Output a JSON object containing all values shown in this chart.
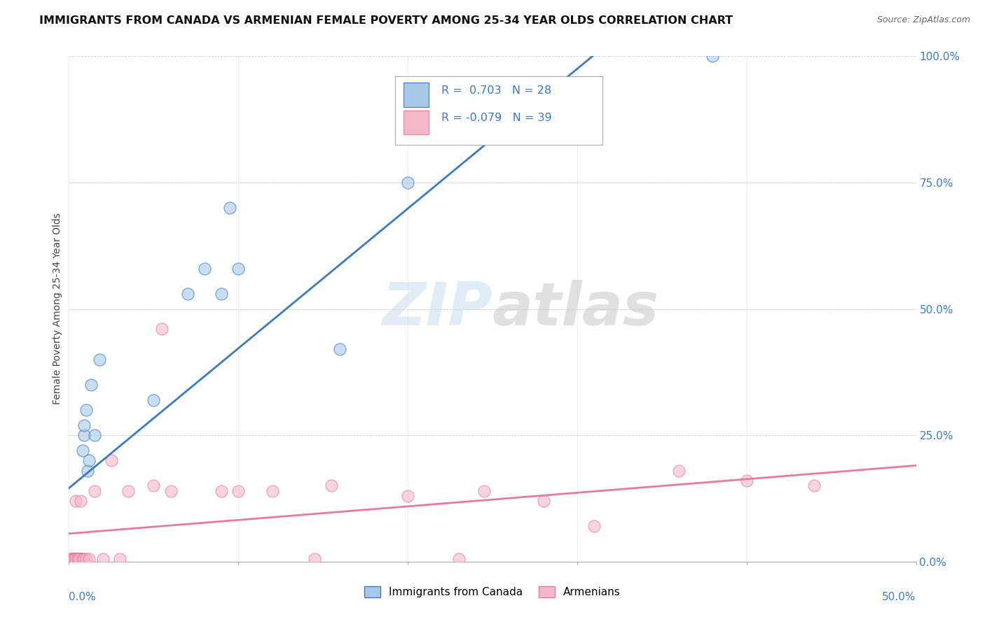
{
  "title": "IMMIGRANTS FROM CANADA VS ARMENIAN FEMALE POVERTY AMONG 25-34 YEAR OLDS CORRELATION CHART",
  "source": "Source: ZipAtlas.com",
  "ylabel": "Female Poverty Among 25-34 Year Olds",
  "legend_1_label": "Immigrants from Canada",
  "legend_2_label": "Armenians",
  "R1": 0.703,
  "N1": 28,
  "R2": -0.079,
  "N2": 39,
  "blue_color": "#a8c8e8",
  "pink_color": "#f4b8c8",
  "blue_line_color": "#3a7bbf",
  "pink_line_color": "#e87aa0",
  "watermark_color": "#d8e8f4",
  "blue_x": [
    0.002,
    0.003,
    0.003,
    0.004,
    0.004,
    0.005,
    0.005,
    0.006,
    0.007,
    0.008,
    0.008,
    0.009,
    0.009,
    0.01,
    0.011,
    0.012,
    0.013,
    0.015,
    0.018,
    0.05,
    0.07,
    0.08,
    0.09,
    0.095,
    0.1,
    0.16,
    0.2,
    0.38
  ],
  "blue_y": [
    0.005,
    0.005,
    0.005,
    0.005,
    0.005,
    0.005,
    0.005,
    0.005,
    0.005,
    0.005,
    0.22,
    0.25,
    0.27,
    0.3,
    0.18,
    0.2,
    0.35,
    0.25,
    0.4,
    0.32,
    0.53,
    0.58,
    0.53,
    0.7,
    0.58,
    0.42,
    0.75,
    1.0
  ],
  "pink_x": [
    0.001,
    0.001,
    0.002,
    0.002,
    0.002,
    0.003,
    0.003,
    0.003,
    0.004,
    0.004,
    0.005,
    0.005,
    0.006,
    0.007,
    0.008,
    0.009,
    0.01,
    0.012,
    0.015,
    0.02,
    0.025,
    0.03,
    0.035,
    0.05,
    0.055,
    0.06,
    0.09,
    0.1,
    0.12,
    0.145,
    0.155,
    0.2,
    0.23,
    0.245,
    0.28,
    0.31,
    0.36,
    0.4,
    0.44
  ],
  "pink_y": [
    0.005,
    0.005,
    0.005,
    0.005,
    0.005,
    0.005,
    0.005,
    0.005,
    0.005,
    0.12,
    0.005,
    0.005,
    0.005,
    0.12,
    0.005,
    0.005,
    0.005,
    0.005,
    0.14,
    0.005,
    0.2,
    0.005,
    0.14,
    0.15,
    0.46,
    0.14,
    0.14,
    0.14,
    0.14,
    0.005,
    0.15,
    0.13,
    0.005,
    0.14,
    0.12,
    0.07,
    0.18,
    0.16,
    0.15
  ],
  "xlim": [
    0,
    0.5
  ],
  "ylim": [
    0,
    1.0
  ],
  "yticks": [
    0.0,
    0.25,
    0.5,
    0.75,
    1.0
  ],
  "ytick_labels": [
    "0.0%",
    "25.0%",
    "50.0%",
    "75.0%",
    "100.0%"
  ]
}
